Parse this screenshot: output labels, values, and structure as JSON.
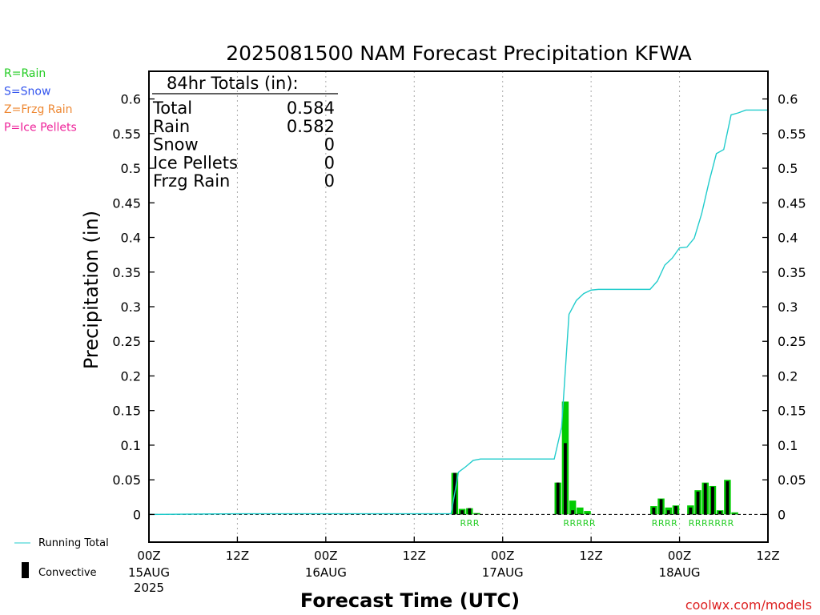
{
  "chart_data": {
    "type": "bar",
    "title": "2025081500 NAM Forecast Precipitation KFWA",
    "xlabel": "Forecast Time (UTC)",
    "ylabel": "Precipitation (in)",
    "ylim": [
      -0.04,
      0.64
    ],
    "xlim": [
      0,
      84
    ],
    "yticks": [
      "0",
      "0.05",
      "0.1",
      "0.15",
      "0.2",
      "0.25",
      "0.3",
      "0.35",
      "0.4",
      "0.45",
      "0.5",
      "0.55",
      "0.6"
    ],
    "ytick_values": [
      0,
      0.05,
      0.1,
      0.15,
      0.2,
      0.25,
      0.3,
      0.35,
      0.4,
      0.45,
      0.5,
      0.55,
      0.6
    ],
    "xticks": [
      {
        "hour": 0,
        "label": "00Z",
        "date": "15AUG",
        "year": "2025"
      },
      {
        "hour": 12,
        "label": "12Z",
        "date": "",
        "year": ""
      },
      {
        "hour": 24,
        "label": "00Z",
        "date": "16AUG",
        "year": ""
      },
      {
        "hour": 36,
        "label": "12Z",
        "date": "",
        "year": ""
      },
      {
        "hour": 48,
        "label": "00Z",
        "date": "17AUG",
        "year": ""
      },
      {
        "hour": 60,
        "label": "12Z",
        "date": "",
        "year": ""
      },
      {
        "hour": 72,
        "label": "00Z",
        "date": "18AUG",
        "year": ""
      },
      {
        "hour": 84,
        "label": "12Z",
        "date": "",
        "year": ""
      }
    ],
    "gridlines_x": [
      12,
      24,
      36,
      48,
      60,
      72
    ],
    "legend": {
      "placement": "left",
      "precip_types": [
        {
          "code": "R=Rain",
          "color": "#22cc22"
        },
        {
          "code": "S=Snow",
          "color": "#3355ee"
        },
        {
          "code": "Z=Frzg Rain",
          "color": "#ee8833"
        },
        {
          "code": "P=Ice Pellets",
          "color": "#ee2299"
        }
      ],
      "running_total_label": "Running Total",
      "convective_label": "Convective"
    },
    "totals_box": {
      "heading": "84hr Totals (in):",
      "rows": [
        {
          "label": "Total",
          "value": "0.584"
        },
        {
          "label": "Rain",
          "value": "0.582"
        },
        {
          "label": "Snow",
          "value": "0"
        },
        {
          "label": "Ice Pellets",
          "value": "0"
        },
        {
          "label": "Frzg Rain",
          "value": "0"
        }
      ]
    },
    "bars": {
      "hours": [
        42,
        43,
        44,
        45,
        56,
        57,
        58,
        59,
        60,
        69,
        70,
        71,
        72,
        74,
        75,
        76,
        77,
        78,
        79,
        80
      ],
      "precip": [
        0.06,
        0.008,
        0.009,
        0.002,
        0.046,
        0.163,
        0.02,
        0.01,
        0.005,
        0.012,
        0.023,
        0.01,
        0.013,
        0.013,
        0.035,
        0.046,
        0.041,
        0.006,
        0.05,
        0.003
      ],
      "convective": [
        0.06,
        0.006,
        0.009,
        0.001,
        0.046,
        0.103,
        0.006,
        0.001,
        0.001,
        0.01,
        0.022,
        0.006,
        0.012,
        0.01,
        0.033,
        0.045,
        0.04,
        0.005,
        0.048,
        0.001
      ]
    },
    "running_total": {
      "hours": [
        0,
        12,
        24,
        36,
        41,
        42,
        43,
        44,
        45,
        54,
        55,
        56,
        57,
        58,
        59,
        60,
        61,
        62,
        63,
        67,
        68,
        69,
        70,
        71,
        72,
        73,
        74,
        75,
        76,
        77,
        78,
        79,
        80,
        81,
        84
      ],
      "values": [
        0,
        0.001,
        0.001,
        0.001,
        0.001,
        0.061,
        0.069,
        0.078,
        0.08,
        0.08,
        0.08,
        0.126,
        0.289,
        0.309,
        0.319,
        0.324,
        0.325,
        0.325,
        0.325,
        0.325,
        0.325,
        0.337,
        0.36,
        0.37,
        0.385,
        0.386,
        0.399,
        0.434,
        0.48,
        0.521,
        0.527,
        0.577,
        0.58,
        0.584,
        0.584
      ]
    },
    "type_labels": [
      {
        "start_hour": 43,
        "text": "RRR"
      },
      {
        "start_hour": 57,
        "text": "RRRRR"
      },
      {
        "start_hour": 69,
        "text": "RRRR"
      },
      {
        "start_hour": 74,
        "text": "RRRRRRR"
      }
    ],
    "colors": {
      "rain": "#00cc00",
      "convective": "#000000",
      "running_total": "#22cccc",
      "grid": "#aaaaaa",
      "watermark": "#dd2222",
      "label_rain": "#22cc22"
    }
  },
  "watermark": "coolwx.com/models"
}
